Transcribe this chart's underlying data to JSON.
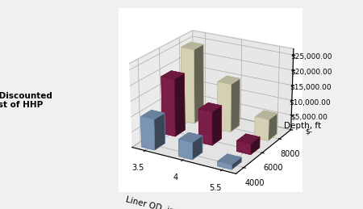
{
  "categories": [
    "3.5",
    "4",
    "5.5"
  ],
  "depths": [
    "4000",
    "6000",
    "8000"
  ],
  "values": [
    [
      10000,
      19000,
      25000
    ],
    [
      5500,
      11000,
      16000
    ],
    [
      1500,
      3500,
      7000
    ]
  ],
  "bar_colors": [
    "#8BA8CC",
    "#8B2252",
    "#EFEBCC"
  ],
  "bar_edge_colors": [
    "#6A87AA",
    "#6B1232",
    "#BFBB9A"
  ],
  "ylabel": "Non-Discounted\nCost of HHP",
  "xlabel": "Liner OD, inches",
  "zlabel": "Depth, ft",
  "zlim": [
    0,
    27000
  ],
  "zticks": [
    0,
    5000,
    10000,
    15000,
    20000,
    25000
  ],
  "ztick_labels": [
    "$-",
    "$5,000.00",
    "$10,000.00",
    "$15,000.00",
    "$20,000.00",
    "$25,000.00"
  ],
  "pane_color_back": "#D8D8D8",
  "pane_color_side": "#D0D0D0",
  "pane_color_floor": "#C8C8C8"
}
